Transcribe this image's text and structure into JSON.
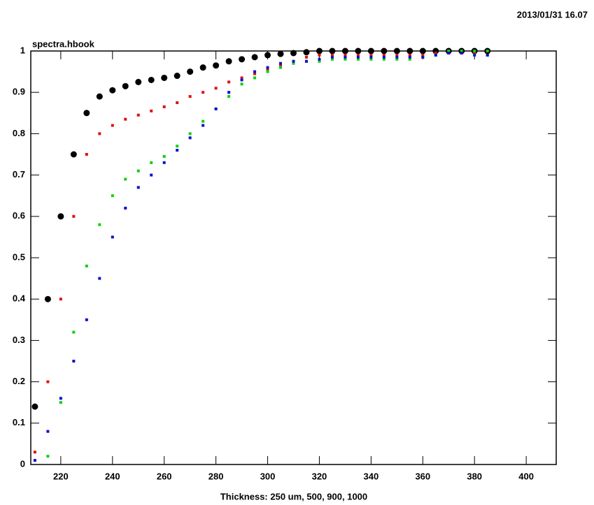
{
  "chart_data": {
    "type": "scatter",
    "date": "2013/01/31   16.07",
    "title": "spectra.hbook",
    "x_label": "Thickness: 250 um, 500, 900, 1000",
    "x": [
      210,
      215,
      220,
      225,
      230,
      235,
      240,
      245,
      250,
      255,
      260,
      265,
      270,
      275,
      280,
      285,
      290,
      295,
      300,
      305,
      310,
      315,
      320,
      325,
      330,
      335,
      340,
      345,
      350,
      355,
      360,
      365,
      370,
      375,
      380,
      385
    ],
    "series": [
      {
        "color": "#000000",
        "marker": "circle",
        "values": [
          0.14,
          0.4,
          0.6,
          0.75,
          0.85,
          0.89,
          0.905,
          0.915,
          0.925,
          0.93,
          0.935,
          0.94,
          0.95,
          0.96,
          0.965,
          0.975,
          0.98,
          0.985,
          0.99,
          0.993,
          0.995,
          0.997,
          1,
          1,
          1,
          1,
          1,
          1,
          1,
          1,
          1,
          1,
          1,
          1,
          1,
          1
        ]
      },
      {
        "color": "#e01010",
        "marker": "square",
        "values": [
          0.03,
          0.2,
          0.4,
          0.6,
          0.75,
          0.8,
          0.82,
          0.835,
          0.845,
          0.855,
          0.865,
          0.875,
          0.89,
          0.9,
          0.91,
          0.925,
          0.935,
          0.945,
          0.955,
          0.965,
          0.975,
          0.985,
          0.99,
          0.99,
          0.99,
          0.99,
          0.99,
          0.99,
          0.99,
          0.99,
          0.99,
          0.995,
          0.995,
          0.995,
          0.995,
          0.99
        ]
      },
      {
        "color": "#10d010",
        "marker": "square",
        "values": [
          null,
          0.02,
          0.15,
          0.32,
          0.48,
          0.58,
          0.65,
          0.69,
          0.71,
          0.73,
          0.745,
          0.77,
          0.8,
          0.83,
          0.86,
          0.89,
          0.92,
          0.935,
          0.95,
          0.96,
          0.97,
          0.975,
          0.975,
          0.98,
          0.98,
          0.98,
          0.98,
          0.98,
          0.98,
          0.98,
          0.985,
          0.99,
          1,
          1,
          1,
          1
        ]
      },
      {
        "color": "#1010d0",
        "marker": "square",
        "values": [
          0.01,
          0.08,
          0.16,
          0.25,
          0.35,
          0.45,
          0.55,
          0.62,
          0.67,
          0.7,
          0.73,
          0.76,
          0.79,
          0.82,
          0.86,
          0.9,
          0.93,
          0.95,
          0.96,
          0.97,
          0.975,
          0.975,
          0.98,
          0.985,
          0.985,
          0.985,
          0.985,
          0.985,
          0.985,
          0.985,
          0.985,
          0.99,
          0.995,
          0.995,
          0.99,
          0.99
        ]
      }
    ],
    "xlim": [
      208.4,
      411.6
    ],
    "ylim": [
      0,
      1
    ],
    "xticks": [
      220,
      240,
      260,
      280,
      300,
      320,
      340,
      360,
      380,
      400
    ],
    "yticks": [
      0,
      0.1,
      0.2,
      0.3,
      0.4,
      0.5,
      0.6,
      0.7,
      0.8,
      0.9,
      1
    ]
  }
}
